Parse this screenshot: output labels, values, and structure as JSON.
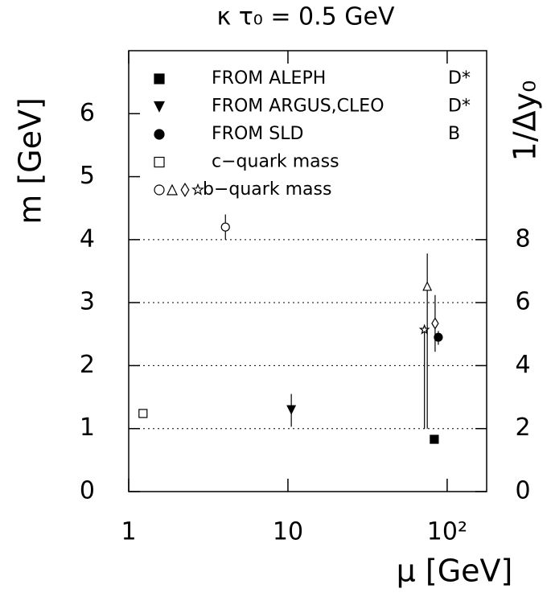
{
  "chart_data": {
    "type": "scatter",
    "title": "κ τ₀ = 0.5 GeV",
    "x_label": "μ [GeV]",
    "y_label": "m [GeV]",
    "y2_label": "1/Δy₀",
    "log_x": true,
    "xlim": [
      1,
      177
    ],
    "xticks": [
      1,
      10,
      {
        "value": 100,
        "label": "10²"
      }
    ],
    "ylim": [
      0,
      7
    ],
    "yticks": [
      0,
      1,
      2,
      3,
      4,
      5,
      6
    ],
    "y2lim": [
      0,
      14
    ],
    "y2ticks": [
      0,
      2,
      4,
      6,
      8
    ],
    "hlines": [
      1,
      2,
      3,
      4
    ],
    "series": [
      {
        "name": "FROM ALEPH",
        "note": "D*",
        "markers": [
          "square-filled"
        ],
        "x": [
          83
        ],
        "values": [
          0.83
        ],
        "err_minus": [
          0.05
        ],
        "err_plus": [
          0.05
        ]
      },
      {
        "name": "FROM ARGUS,CLEO",
        "note": "D*",
        "markers": [
          "triangle-down-filled"
        ],
        "x": [
          10.5
        ],
        "values": [
          1.3
        ],
        "err_minus": [
          0.27
        ],
        "err_plus": [
          0.25
        ]
      },
      {
        "name": "FROM SLD",
        "note": "B",
        "markers": [
          "circle-filled"
        ],
        "x": [
          88
        ],
        "values": [
          2.45
        ],
        "err_minus": [
          0.12
        ],
        "err_plus": [
          0.1
        ]
      },
      {
        "name": "c−quark mass",
        "markers": [
          "square-open"
        ],
        "x": [
          1.23
        ],
        "values": [
          1.24
        ],
        "err_minus": [
          0.06
        ],
        "err_plus": [
          0.06
        ]
      },
      {
        "name": "b−quark mass",
        "markers": [
          "circle-open",
          "triangle-open",
          "diamond-open",
          "star-open"
        ],
        "x": [
          4.05,
          75,
          84,
          72
        ],
        "values": [
          4.2,
          3.26,
          2.67,
          2.57
        ],
        "err_minus": [
          0.2,
          2.26,
          0.45,
          1.57
        ],
        "err_plus": [
          0.2,
          0.52,
          0.45,
          0.0
        ]
      }
    ]
  }
}
